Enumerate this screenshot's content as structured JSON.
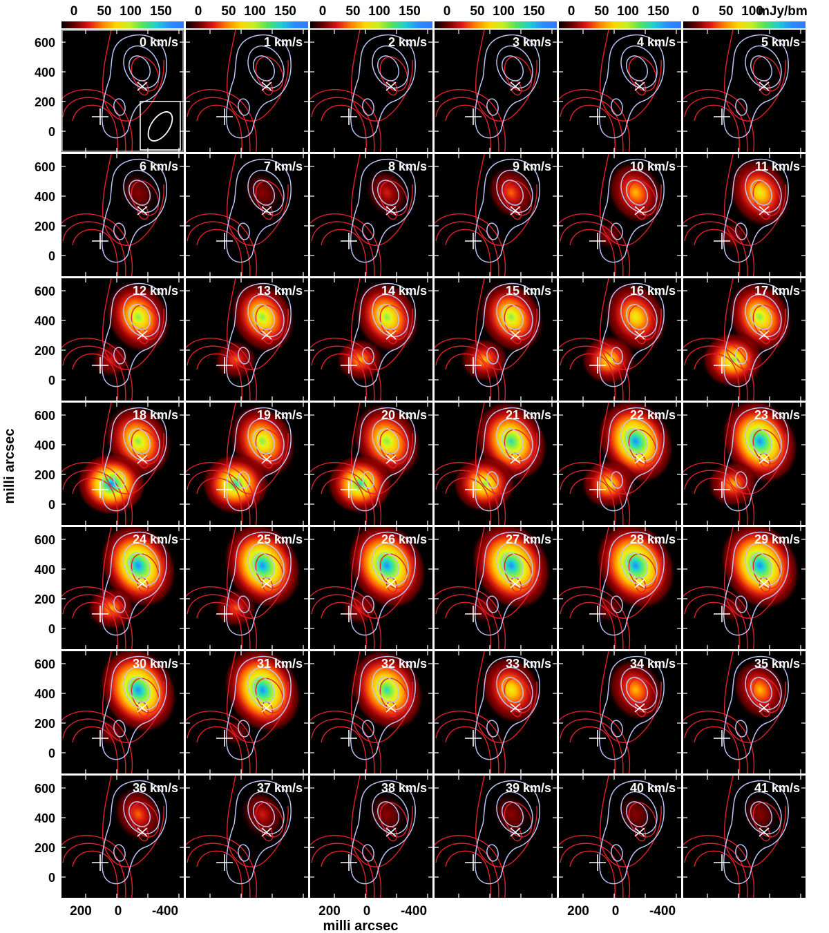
{
  "colorbar": {
    "ticks_first": [
      "0",
      "50",
      "100",
      "150"
    ],
    "ticks_last": [
      "0",
      "50",
      "100"
    ],
    "unit": "mJy/bm"
  },
  "axes": {
    "y_label": "milli arcsec",
    "x_label": "milli arcsec",
    "y_ticks": [
      "600",
      "400",
      "200",
      "0"
    ],
    "x_ticks": [
      "200",
      "0",
      "-400"
    ]
  },
  "channels": [
    {
      "label": "0 km/s",
      "intensity": 0.0,
      "hot_nw": 0.0,
      "hot_se": 0.0
    },
    {
      "label": "1 km/s",
      "intensity": 0.0,
      "hot_nw": 0.0,
      "hot_se": 0.0
    },
    {
      "label": "2 km/s",
      "intensity": 0.0,
      "hot_nw": 0.0,
      "hot_se": 0.0
    },
    {
      "label": "3 km/s",
      "intensity": 0.0,
      "hot_nw": 0.0,
      "hot_se": 0.0
    },
    {
      "label": "4 km/s",
      "intensity": 0.0,
      "hot_nw": 0.0,
      "hot_se": 0.0
    },
    {
      "label": "5 km/s",
      "intensity": 0.0,
      "hot_nw": 0.0,
      "hot_se": 0.0
    },
    {
      "label": "6 km/s",
      "intensity": 0.12,
      "hot_nw": 0.1,
      "hot_se": 0.0
    },
    {
      "label": "7 km/s",
      "intensity": 0.15,
      "hot_nw": 0.12,
      "hot_se": 0.0
    },
    {
      "label": "8 km/s",
      "intensity": 0.22,
      "hot_nw": 0.18,
      "hot_se": 0.0
    },
    {
      "label": "9 km/s",
      "intensity": 0.32,
      "hot_nw": 0.28,
      "hot_se": 0.0
    },
    {
      "label": "10 km/s",
      "intensity": 0.5,
      "hot_nw": 0.45,
      "hot_se": 0.05
    },
    {
      "label": "11 km/s",
      "intensity": 0.62,
      "hot_nw": 0.58,
      "hot_se": 0.08
    },
    {
      "label": "12 km/s",
      "intensity": 0.68,
      "hot_nw": 0.62,
      "hot_se": 0.25
    },
    {
      "label": "13 km/s",
      "intensity": 0.7,
      "hot_nw": 0.62,
      "hot_se": 0.32
    },
    {
      "label": "14 km/s",
      "intensity": 0.72,
      "hot_nw": 0.62,
      "hot_se": 0.4
    },
    {
      "label": "15 km/s",
      "intensity": 0.72,
      "hot_nw": 0.62,
      "hot_se": 0.42
    },
    {
      "label": "16 km/s",
      "intensity": 0.72,
      "hot_nw": 0.6,
      "hot_se": 0.55
    },
    {
      "label": "17 km/s",
      "intensity": 0.75,
      "hot_nw": 0.62,
      "hot_se": 0.7
    },
    {
      "label": "18 km/s",
      "intensity": 0.85,
      "hot_nw": 0.66,
      "hot_se": 0.85
    },
    {
      "label": "19 km/s",
      "intensity": 0.85,
      "hot_nw": 0.66,
      "hot_se": 0.82
    },
    {
      "label": "20 km/s",
      "intensity": 0.85,
      "hot_nw": 0.7,
      "hot_se": 0.78
    },
    {
      "label": "21 km/s",
      "intensity": 0.85,
      "hot_nw": 0.78,
      "hot_se": 0.72
    },
    {
      "label": "22 km/s",
      "intensity": 0.85,
      "hot_nw": 0.85,
      "hot_se": 0.55
    },
    {
      "label": "23 km/s",
      "intensity": 0.85,
      "hot_nw": 0.85,
      "hot_se": 0.48
    },
    {
      "label": "24 km/s",
      "intensity": 0.85,
      "hot_nw": 0.85,
      "hot_se": 0.4
    },
    {
      "label": "25 km/s",
      "intensity": 0.85,
      "hot_nw": 0.88,
      "hot_se": 0.3
    },
    {
      "label": "26 km/s",
      "intensity": 0.85,
      "hot_nw": 0.9,
      "hot_se": 0.18
    },
    {
      "label": "27 km/s",
      "intensity": 0.85,
      "hot_nw": 0.92,
      "hot_se": 0.15
    },
    {
      "label": "28 km/s",
      "intensity": 0.85,
      "hot_nw": 0.92,
      "hot_se": 0.1
    },
    {
      "label": "29 km/s",
      "intensity": 0.85,
      "hot_nw": 0.92,
      "hot_se": 0.08
    },
    {
      "label": "30 km/s",
      "intensity": 0.82,
      "hot_nw": 0.88,
      "hot_se": 0.08
    },
    {
      "label": "31 km/s",
      "intensity": 0.8,
      "hot_nw": 0.88,
      "hot_se": 0.05
    },
    {
      "label": "32 km/s",
      "intensity": 0.72,
      "hot_nw": 0.8,
      "hot_se": 0.0
    },
    {
      "label": "33 km/s",
      "intensity": 0.55,
      "hot_nw": 0.55,
      "hot_se": 0.0
    },
    {
      "label": "34 km/s",
      "intensity": 0.45,
      "hot_nw": 0.45,
      "hot_se": 0.0
    },
    {
      "label": "35 km/s",
      "intensity": 0.4,
      "hot_nw": 0.4,
      "hot_se": 0.0
    },
    {
      "label": "36 km/s",
      "intensity": 0.32,
      "hot_nw": 0.3,
      "hot_se": 0.0
    },
    {
      "label": "37 km/s",
      "intensity": 0.22,
      "hot_nw": 0.2,
      "hot_se": 0.0
    },
    {
      "label": "38 km/s",
      "intensity": 0.15,
      "hot_nw": 0.12,
      "hot_se": 0.0
    },
    {
      "label": "39 km/s",
      "intensity": 0.12,
      "hot_nw": 0.1,
      "hot_se": 0.0
    },
    {
      "label": "40 km/s",
      "intensity": 0.08,
      "hot_nw": 0.06,
      "hot_se": 0.0
    },
    {
      "label": "41 km/s",
      "intensity": 0.05,
      "hot_nw": 0.04,
      "hot_se": 0.0
    }
  ],
  "colors": {
    "contour_red": "#e4212b",
    "contour_blue": "#b9c6f4",
    "marker": "#ffffff",
    "panel_bg": "#000000",
    "palette": [
      "#000000",
      "#8b0000",
      "#d41a12",
      "#ff6a00",
      "#ffc400",
      "#e8f21a",
      "#7df04a",
      "#22d6c8",
      "#1e8cff",
      "#a9c8ff"
    ]
  }
}
